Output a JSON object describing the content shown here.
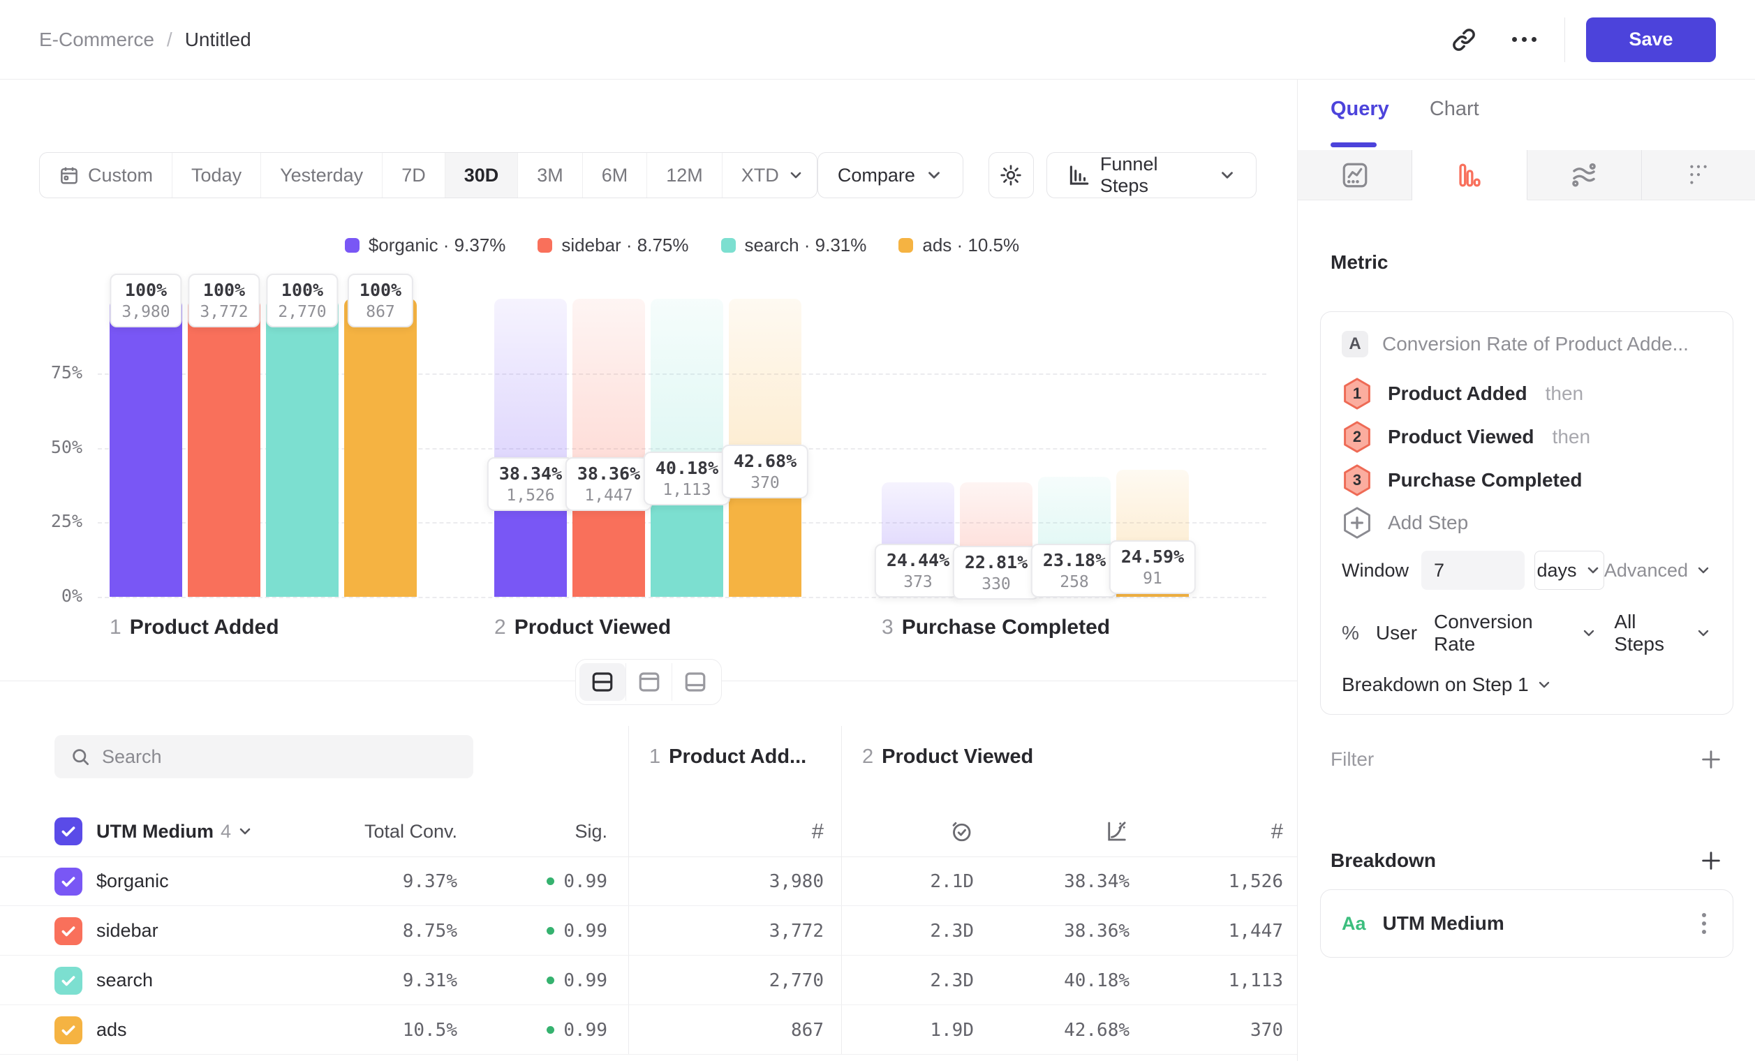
{
  "header": {
    "breadcrumb": {
      "parent": "E-Commerce",
      "separator": "/",
      "current": "Untitled"
    },
    "save_label": "Save"
  },
  "toolbar": {
    "date_ranges": [
      {
        "label": "Custom",
        "icon": "calendar"
      },
      {
        "label": "Today"
      },
      {
        "label": "Yesterday"
      },
      {
        "label": "7D"
      },
      {
        "label": "30D",
        "active": true
      },
      {
        "label": "3M"
      },
      {
        "label": "6M"
      },
      {
        "label": "12M"
      },
      {
        "label": "XTD",
        "chevron": true
      }
    ],
    "compare_label": "Compare",
    "chart_type_label": "Funnel Steps"
  },
  "chart_data": {
    "type": "bar",
    "subtype": "funnel-steps",
    "y_ticks": [
      {
        "label": "75%",
        "value": 75
      },
      {
        "label": "50%",
        "value": 50
      },
      {
        "label": "25%",
        "value": 25
      },
      {
        "label": "0%",
        "value": 0
      }
    ],
    "ylim": [
      0,
      100
    ],
    "grid": "dashed",
    "steps": [
      {
        "num": "1",
        "label": "Product Added"
      },
      {
        "num": "2",
        "label": "Product Viewed"
      },
      {
        "num": "3",
        "label": "Purchase Completed"
      }
    ],
    "series": [
      {
        "name": "$organic",
        "color": "#7957F5",
        "overall_rate": "9.37%",
        "counts": [
          3980,
          1526,
          373
        ],
        "pct_labels": [
          "100%",
          "38.34%",
          "24.44%"
        ],
        "count_labels": [
          "3,980",
          "1,526",
          "373"
        ]
      },
      {
        "name": "sidebar",
        "color": "#F9705B",
        "overall_rate": "8.75%",
        "counts": [
          3772,
          1447,
          330
        ],
        "pct_labels": [
          "100%",
          "38.36%",
          "22.81%"
        ],
        "count_labels": [
          "3,772",
          "1,447",
          "330"
        ]
      },
      {
        "name": "search",
        "color": "#7CDFD0",
        "overall_rate": "9.31%",
        "counts": [
          2770,
          1113,
          258
        ],
        "pct_labels": [
          "100%",
          "40.18%",
          "23.18%"
        ],
        "count_labels": [
          "2,770",
          "1,113",
          "258"
        ]
      },
      {
        "name": "ads",
        "color": "#F5B342",
        "overall_rate": "10.5%",
        "counts": [
          867,
          370,
          91
        ],
        "pct_labels": [
          "100%",
          "42.68%",
          "24.59%"
        ],
        "count_labels": [
          "867",
          "370",
          "91"
        ]
      }
    ]
  },
  "table": {
    "search_placeholder": "Search",
    "header": {
      "group_column": "UTM Medium",
      "group_count": "4",
      "total_conv": "Total Conv.",
      "sig": "Sig.",
      "step1_num": "1",
      "step1_label": "Product Add...",
      "step2_num": "2",
      "step2_label": "Product Viewed"
    },
    "rows": [
      {
        "name": "$organic",
        "color": "#7957F5",
        "total_conv": "9.37%",
        "sig": "0.99",
        "step1_count": "3,980",
        "avg_time": "2.1D",
        "conv_rate": "38.34%",
        "count": "1,526"
      },
      {
        "name": "sidebar",
        "color": "#F9705B",
        "total_conv": "8.75%",
        "sig": "0.99",
        "step1_count": "3,772",
        "avg_time": "2.3D",
        "conv_rate": "38.36%",
        "count": "1,447"
      },
      {
        "name": "search",
        "color": "#7CDFD0",
        "total_conv": "9.31%",
        "sig": "0.99",
        "step1_count": "2,770",
        "avg_time": "2.3D",
        "conv_rate": "40.18%",
        "count": "1,113"
      },
      {
        "name": "ads",
        "color": "#F5B342",
        "total_conv": "10.5%",
        "sig": "0.99",
        "step1_count": "867",
        "avg_time": "1.9D",
        "conv_rate": "42.68%",
        "count": "370"
      }
    ]
  },
  "query_panel": {
    "tabs": {
      "query": "Query",
      "chart": "Chart"
    },
    "metric_section_label": "Metric",
    "metric": {
      "badge": "A",
      "name": "Conversion Rate of Product Adde..."
    },
    "steps": [
      {
        "num": "1",
        "label": "Product Added",
        "suffix": "then"
      },
      {
        "num": "2",
        "label": "Product Viewed",
        "suffix": "then"
      },
      {
        "num": "3",
        "label": "Purchase Completed",
        "suffix": ""
      }
    ],
    "add_step_label": "Add Step",
    "window": {
      "label": "Window",
      "value": "7",
      "unit": "days",
      "advanced_label": "Advanced"
    },
    "counting": {
      "prefix": "%",
      "entity": "User",
      "method": "Conversion Rate",
      "scope": "All Steps"
    },
    "breakdown_on_label": "Breakdown on Step 1",
    "filter_label": "Filter",
    "breakdown_label": "Breakdown",
    "breakdown_items": [
      {
        "type_icon": "Aa",
        "name": "UTM Medium"
      }
    ]
  },
  "colors": {
    "accent": "#4C43DB",
    "funnel_tab_active": "#F8705C",
    "sig_dot": "#35B26F",
    "aa_green": "#3CBE7E"
  }
}
